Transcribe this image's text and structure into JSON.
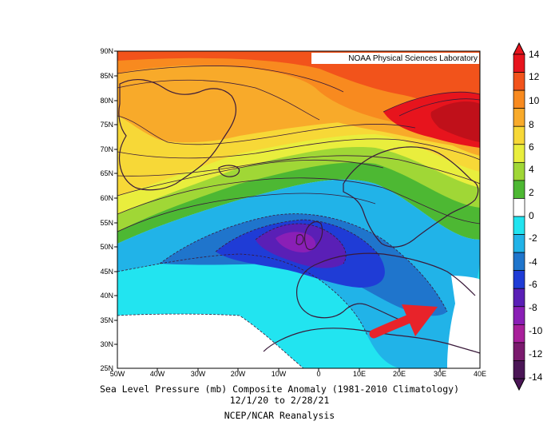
{
  "credit": "NOAA Physical Sciences Laboratory",
  "caption": {
    "line1": "Sea Level Pressure (mb) Composite Anomaly (1981-2010 Climatology)",
    "line2": "12/1/20   to 2/28/21",
    "line3": "NCEP/NCAR Reanalysis"
  },
  "lat_labels": [
    "90N",
    "85N",
    "80N",
    "75N",
    "70N",
    "65N",
    "60N",
    "55N",
    "50N",
    "45N",
    "40N",
    "35N",
    "30N",
    "25N"
  ],
  "lon_labels": [
    "50W",
    "40W",
    "30W",
    "20W",
    "10W",
    "0",
    "10E",
    "20E",
    "30E",
    "40E"
  ],
  "colorbar": {
    "labels": [
      "14",
      "12",
      "10",
      "8",
      "6",
      "4",
      "2",
      "0",
      "-2",
      "-4",
      "-6",
      "-8",
      "-10",
      "-12",
      "-14"
    ],
    "colors": [
      "#e7141d",
      "#f2531b",
      "#f88a1f",
      "#f8aa2a",
      "#f7d837",
      "#e9ee3d",
      "#a0d736",
      "#4db833",
      "#ffffff",
      "#22e4f0",
      "#21b3e8",
      "#1f75cc",
      "#1f3cd6",
      "#5a1fb6",
      "#8a1fb6",
      "#a81f9a",
      "#7a1a6d",
      "#4b1656"
    ]
  },
  "annotation": "red-arrow"
}
